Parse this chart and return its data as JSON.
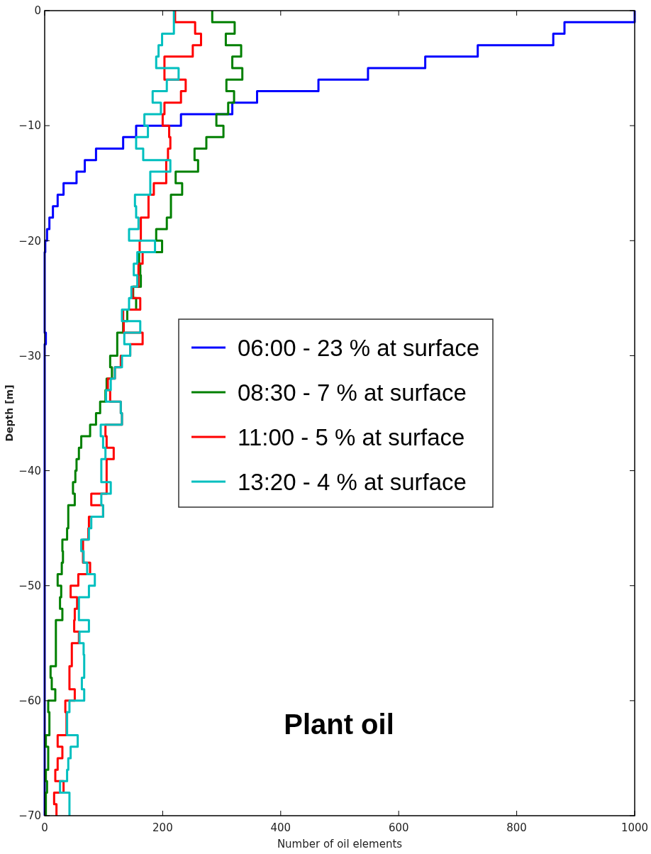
{
  "chart_data": {
    "type": "step",
    "xlabel": "Number of oil elements",
    "ylabel": "Depth [m]",
    "xlim": [
      0,
      1000
    ],
    "xticks": [
      0,
      200,
      400,
      600,
      800,
      1000
    ],
    "ylim": [
      -70,
      0
    ],
    "yticks": [
      {
        "value": -70,
        "label": "−70"
      },
      {
        "value": -60,
        "label": "−60"
      },
      {
        "value": -50,
        "label": "−50"
      },
      {
        "value": -40,
        "label": "−40"
      },
      {
        "value": -30,
        "label": "−30"
      },
      {
        "value": -20,
        "label": "−20"
      },
      {
        "value": -10,
        "label": "−10"
      },
      0
    ],
    "legend": "right",
    "grid": false,
    "annotations": [
      "Plant oil"
    ],
    "series": [
      {
        "name": "06:00 - 23 % at surface",
        "color": "#0000ff",
        "x": [
          1000,
          881,
          862,
          734,
          645,
          548,
          464,
          360,
          318,
          231,
          155,
          133,
          87,
          68,
          54,
          32,
          22,
          14,
          8,
          4,
          1,
          0,
          0,
          0,
          0,
          0,
          0,
          0,
          2,
          0,
          0,
          0,
          0,
          0,
          0,
          0,
          0,
          0,
          0,
          0,
          0,
          0,
          0,
          0,
          0,
          0,
          0,
          0,
          0,
          0,
          0,
          0,
          0,
          0,
          0,
          0,
          0,
          0,
          0,
          0,
          0,
          0,
          0,
          0,
          0,
          0,
          0,
          0,
          0,
          0,
          0
        ],
        "values": [
          0,
          -1,
          -2,
          -3,
          -4,
          -5,
          -6,
          -7,
          -8,
          -9,
          -10,
          -11,
          -12,
          -13,
          -14,
          -15,
          -16,
          -17,
          -18,
          -19,
          -20,
          -21,
          -22,
          -23,
          -24,
          -25,
          -26,
          -27,
          -28,
          -29,
          -30,
          -31,
          -32,
          -33,
          -34,
          -35,
          -36,
          -37,
          -38,
          -39,
          -40,
          -41,
          -42,
          -43,
          -44,
          -45,
          -46,
          -47,
          -48,
          -49,
          -50,
          -51,
          -52,
          -53,
          -54,
          -55,
          -56,
          -57,
          -58,
          -59,
          -60,
          -61,
          -62,
          -63,
          -64,
          -65,
          -66,
          -67,
          -68,
          -69,
          -70
        ]
      },
      {
        "name": "08:30 - 7 % at surface",
        "color": "#008000",
        "x": [
          284,
          322,
          307,
          333,
          318,
          335,
          308,
          321,
          311,
          291,
          303,
          274,
          254,
          260,
          222,
          233,
          214,
          214,
          207,
          189,
          199,
          160,
          162,
          163,
          150,
          155,
          140,
          133,
          123,
          123,
          111,
          114,
          105,
          103,
          94,
          87,
          77,
          62,
          58,
          54,
          52,
          48,
          51,
          40,
          40,
          38,
          30,
          31,
          29,
          22,
          28,
          26,
          30,
          19,
          19,
          19,
          19,
          10,
          12,
          18,
          6,
          8,
          8,
          2,
          6,
          6,
          2,
          4,
          2,
          2,
          2
        ],
        "values": [
          0,
          -1,
          -2,
          -3,
          -4,
          -5,
          -6,
          -7,
          -8,
          -9,
          -10,
          -11,
          -12,
          -13,
          -14,
          -15,
          -16,
          -17,
          -18,
          -19,
          -20,
          -21,
          -22,
          -23,
          -24,
          -25,
          -26,
          -27,
          -28,
          -29,
          -30,
          -31,
          -32,
          -33,
          -34,
          -35,
          -36,
          -37,
          -38,
          -39,
          -40,
          -41,
          -42,
          -43,
          -44,
          -45,
          -46,
          -47,
          -48,
          -49,
          -50,
          -51,
          -52,
          -53,
          -54,
          -55,
          -56,
          -57,
          -58,
          -59,
          -60,
          -61,
          -62,
          -63,
          -64,
          -65,
          -66,
          -67,
          -68,
          -69,
          -70
        ]
      },
      {
        "name": "11:00 - 5 % at surface",
        "color": "#ff0000",
        "x": [
          221,
          255,
          265,
          251,
          203,
          203,
          239,
          231,
          203,
          200,
          211,
          213,
          209,
          206,
          206,
          185,
          176,
          176,
          163,
          163,
          161,
          166,
          159,
          159,
          149,
          162,
          133,
          134,
          166,
          145,
          129,
          119,
          107,
          111,
          129,
          131,
          103,
          105,
          117,
          105,
          105,
          105,
          79,
          99,
          75,
          74,
          65,
          65,
          77,
          57,
          44,
          55,
          51,
          50,
          58,
          46,
          46,
          42,
          42,
          51,
          35,
          37,
          37,
          22,
          30,
          22,
          18,
          32,
          16,
          20,
          20
        ],
        "values": [
          0,
          -1,
          -2,
          -3,
          -4,
          -5,
          -6,
          -7,
          -8,
          -9,
          -10,
          -11,
          -12,
          -13,
          -14,
          -15,
          -16,
          -17,
          -18,
          -19,
          -20,
          -21,
          -22,
          -23,
          -24,
          -25,
          -26,
          -27,
          -28,
          -29,
          -30,
          -31,
          -32,
          -33,
          -34,
          -35,
          -36,
          -37,
          -38,
          -39,
          -40,
          -41,
          -42,
          -43,
          -44,
          -45,
          -46,
          -47,
          -48,
          -49,
          -50,
          -51,
          -52,
          -53,
          -54,
          -55,
          -56,
          -57,
          -58,
          -59,
          -60,
          -61,
          -62,
          -63,
          -64,
          -65,
          -66,
          -67,
          -68,
          -69,
          -70
        ]
      },
      {
        "name": "13:20 - 4 % at surface",
        "color": "#00bfbf",
        "x": [
          219,
          219,
          199,
          193,
          189,
          227,
          207,
          183,
          197,
          169,
          175,
          155,
          167,
          213,
          179,
          179,
          153,
          155,
          159,
          143,
          187,
          157,
          151,
          157,
          147,
          143,
          131,
          162,
          135,
          145,
          131,
          119,
          112,
          104,
          129,
          131,
          95,
          99,
          103,
          96,
          96,
          112,
          96,
          99,
          79,
          75,
          62,
          66,
          72,
          85,
          75,
          58,
          58,
          75,
          59,
          66,
          67,
          67,
          63,
          67,
          42,
          38,
          38,
          56,
          44,
          40,
          38,
          26,
          42,
          42,
          42
        ],
        "values": [
          0,
          -1,
          -2,
          -3,
          -4,
          -5,
          -6,
          -7,
          -8,
          -9,
          -10,
          -11,
          -12,
          -13,
          -14,
          -15,
          -16,
          -17,
          -18,
          -19,
          -20,
          -21,
          -22,
          -23,
          -24,
          -25,
          -26,
          -27,
          -28,
          -29,
          -30,
          -31,
          -32,
          -33,
          -34,
          -35,
          -36,
          -37,
          -38,
          -39,
          -40,
          -41,
          -42,
          -43,
          -44,
          -45,
          -46,
          -47,
          -48,
          -49,
          -50,
          -51,
          -52,
          -53,
          -54,
          -55,
          -56,
          -57,
          -58,
          -59,
          -60,
          -61,
          -62,
          -63,
          -64,
          -65,
          -66,
          -67,
          -68,
          -69,
          -70
        ]
      }
    ]
  }
}
